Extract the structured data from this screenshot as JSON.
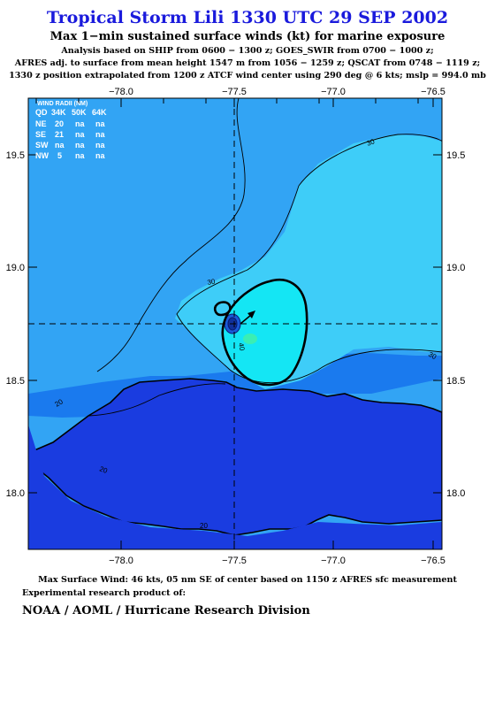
{
  "title": "Tropical Storm Lili 1330 UTC 29 SEP 2002",
  "subtitle": "Max 1−min sustained surface winds (kt) for marine exposure",
  "analysis_lines": [
    "Analysis based on  SHIP from 0600 − 1300 z;  GOES_SWIR from 0700 − 1000 z;",
    "AFRES adj. to surface from mean height 1547 m from 1056 − 1259 z;  QSCAT from 0748 − 1119 z;",
    "1330 z position extrapolated from 1200 z ATCF wind center using 290 deg @ 6 kts; mslp = 994.0 mb"
  ],
  "map": {
    "lon_ticks": [
      "−78.0",
      "−77.5",
      "−77.0",
      "−76.5"
    ],
    "lat_ticks": [
      "19.5",
      "19.0",
      "18.5",
      "18.0"
    ],
    "contour_labels": [
      "30",
      "30",
      "40",
      "30",
      "20",
      "20",
      "20"
    ],
    "wind_radii": {
      "title": "WIND RADII (NM)",
      "header": [
        "QD",
        "34K",
        "50K",
        "64K"
      ],
      "rows": [
        [
          "NE",
          "20",
          "na",
          "na"
        ],
        [
          "SE",
          "21",
          "na",
          "na"
        ],
        [
          "SW",
          "na",
          "na",
          "na"
        ],
        [
          "NW",
          "5",
          "na",
          "na"
        ]
      ]
    },
    "colors": {
      "ocean_low": "#1a7aee",
      "band_20_30": "#32a4f4",
      "band_30_34": "#3ecdf8",
      "band_34_40": "#14e6f4",
      "band_40_plus": "#3aeeb4",
      "land": "#1a3ce0",
      "text": "#ffffff"
    }
  },
  "footer": {
    "max_wind": "Max Surface Wind: 46 kts, 05 nm SE of center based on 1150 z AFRES sfc measurement",
    "experimental": "Experimental research product of:",
    "org": "NOAA / AOML / Hurricane Research Division"
  }
}
